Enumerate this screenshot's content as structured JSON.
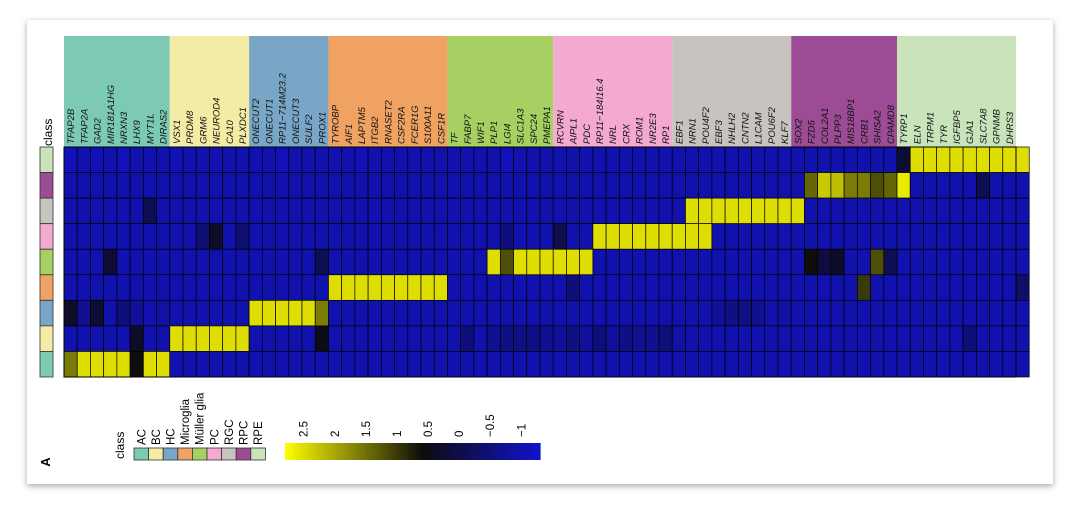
{
  "panel_label": "A",
  "chart_data": {
    "type": "heatmap",
    "class_axis_label": "class",
    "colorbar_ticks": [
      "2.5",
      "2",
      "1.5",
      "1",
      "0.5",
      "0",
      "−0.5",
      "−1"
    ],
    "colorbar_range": [
      -1.3,
      2.8
    ],
    "legend": {
      "title": "class",
      "items": [
        {
          "label": "AC",
          "color": "#7cc9b4"
        },
        {
          "label": "BC",
          "color": "#f4eca4"
        },
        {
          "label": "HC",
          "color": "#79a6c7"
        },
        {
          "label": "Microglia",
          "color": "#f0a262"
        },
        {
          "label": "Müller glia",
          "color": "#a6d061"
        },
        {
          "label": "PC",
          "color": "#f4a9d0"
        },
        {
          "label": "RGC",
          "color": "#c7c4bf"
        },
        {
          "label": "RPC",
          "color": "#9b4c95"
        },
        {
          "label": "RPE",
          "color": "#c9e3bb"
        }
      ]
    },
    "rows": [
      "RPE",
      "RPC",
      "RGC",
      "PC",
      "Müller glia",
      "Microglia",
      "HC",
      "BC",
      "AC"
    ],
    "groups": [
      {
        "class": "AC",
        "genes": [
          "TFAP2B",
          "TFAP2A",
          "GAD2",
          "MIR181A1HG",
          "NRXN3",
          "LHX9",
          "MYT1L",
          "DIRAS2"
        ]
      },
      {
        "class": "BC",
        "genes": [
          "VSX1",
          "PRDM8",
          "GRM6",
          "NEUROD4",
          "CA10",
          "PLXDC1"
        ]
      },
      {
        "class": "HC",
        "genes": [
          "ONECUT2",
          "ONECUT1",
          "RP11−714M23.2",
          "ONECUT3",
          "SULF2",
          "PROX1"
        ]
      },
      {
        "class": "Microglia",
        "genes": [
          "TYROBP",
          "AIF1",
          "LAPTM5",
          "ITGB2",
          "RNASET2",
          "CSF2RA",
          "FCER1G",
          "S100A11",
          "CSF1R"
        ]
      },
      {
        "class": "Müller glia",
        "genes": [
          "TF",
          "FABP7",
          "WIF1",
          "PLP1",
          "LGI4",
          "SLC1A3",
          "SPC24",
          "PMEPA1"
        ]
      },
      {
        "class": "PC",
        "genes": [
          "RCVRN",
          "AIPL1",
          "PDC",
          "RP11−184I16.4",
          "NRL",
          "CRX",
          "ROM1",
          "NR2E3",
          "RP1"
        ]
      },
      {
        "class": "RGC",
        "genes": [
          "EBF1",
          "NRN1",
          "POU4F2",
          "EBF3",
          "NHLH2",
          "CNTN2",
          "L1CAM",
          "POU6F2",
          "KLF7"
        ]
      },
      {
        "class": "RPC",
        "genes": [
          "SOX2",
          "FZD5",
          "COL2A1",
          "PLPP3",
          "MIS18BP1",
          "CRB1",
          "SHISA2",
          "CPAMD8"
        ]
      },
      {
        "class": "RPE",
        "genes": [
          "TYRP1",
          "ELN",
          "TRPM1",
          "TYR",
          "IGFBP5",
          "GJA1",
          "SLC7A8",
          "GPNMB",
          "DHRS3"
        ]
      }
    ],
    "values": [
      [
        -1.1,
        -1.0,
        -1.1,
        -1.0,
        -1.1,
        -1.0,
        -1.0,
        -1.0,
        -1.1,
        -1.0,
        -1.0,
        -1.0,
        -1.0,
        -1.0,
        -1.0,
        -1.0,
        -1.1,
        -1.0,
        -1.0,
        -1.0,
        -1.0,
        -1.0,
        -1.1,
        -1.0,
        -1.0,
        -1.0,
        -1.0,
        -1.0,
        -1.0,
        -1.0,
        -1.0,
        -1.0,
        -1.0,
        -1.1,
        -1.0,
        -1.0,
        -1.0,
        -1.0,
        -1.0,
        -1.0,
        -1.0,
        -1.0,
        -1.0,
        -1.0,
        -1.0,
        -1.0,
        -1.0,
        -1.0,
        -1.0,
        -1.0,
        -1.0,
        -1.0,
        -1.0,
        -1.0,
        -1.0,
        -1.0,
        -1.0,
        -1.0,
        -1.0,
        -1.0,
        -1.0,
        -1.0,
        -1.0,
        0.2,
        2.5,
        2.5,
        2.5,
        2.5,
        2.5,
        2.5,
        2.5,
        2.5,
        2.5
      ],
      [
        -1.0,
        -1.0,
        -1.0,
        -1.0,
        -1.0,
        -1.0,
        -1.0,
        -1.0,
        -1.0,
        -1.0,
        -1.0,
        -1.0,
        -1.0,
        -1.0,
        -1.0,
        -1.0,
        -1.0,
        -1.0,
        -1.0,
        -1.0,
        -1.0,
        -1.0,
        -1.0,
        -1.0,
        -1.0,
        -1.0,
        -1.0,
        -1.0,
        -1.0,
        -1.0,
        -1.0,
        -1.0,
        -1.0,
        -1.0,
        -1.0,
        -1.0,
        -1.0,
        -1.0,
        -1.0,
        -1.0,
        -1.0,
        -1.0,
        -1.0,
        -1.0,
        -1.0,
        -1.0,
        -1.0,
        -1.0,
        -1.0,
        -1.0,
        -1.0,
        -1.0,
        -1.0,
        -1.0,
        -1.0,
        -1.0,
        1.4,
        2.3,
        2.2,
        1.6,
        1.6,
        1.2,
        1.4,
        2.6,
        -1.0,
        -1.0,
        -1.0,
        -1.0,
        -1.0,
        -0.1,
        -1.0,
        -1.0,
        -1.0
      ],
      [
        -1.0,
        -1.0,
        -1.0,
        -1.0,
        -1.0,
        -1.0,
        -0.1,
        -1.0,
        -1.0,
        -1.0,
        -1.0,
        -1.0,
        -1.0,
        -1.0,
        -1.0,
        -1.0,
        -1.0,
        -1.0,
        -1.0,
        -1.0,
        -1.0,
        -1.0,
        -1.0,
        -1.0,
        -1.0,
        -1.0,
        -1.0,
        -1.0,
        -1.0,
        -1.0,
        -1.0,
        -1.0,
        -1.0,
        -1.0,
        -1.0,
        -1.0,
        -1.0,
        -1.0,
        -1.0,
        -1.0,
        -1.0,
        -1.0,
        -1.0,
        -1.0,
        -1.0,
        -1.0,
        -1.0,
        2.5,
        2.5,
        2.5,
        2.5,
        2.5,
        2.5,
        2.5,
        2.5,
        2.5,
        -1.0,
        -1.0,
        -1.0,
        -1.0,
        -1.0,
        -1.0,
        -1.0,
        -1.0,
        -1.0,
        -1.0,
        -1.0,
        -1.0,
        -1.0,
        -1.0,
        -1.0,
        -1.0,
        -1.0
      ],
      [
        -1.0,
        -1.0,
        -1.0,
        -1.0,
        -1.0,
        -1.0,
        -1.0,
        -1.0,
        -1.0,
        -1.0,
        -0.4,
        0.3,
        -1.0,
        -0.4,
        -1.0,
        -1.0,
        -1.0,
        -1.0,
        -1.0,
        -1.0,
        -1.0,
        -1.0,
        -1.0,
        -1.0,
        -1.0,
        -1.0,
        -1.0,
        -1.0,
        -1.0,
        -1.0,
        -1.0,
        -1.0,
        -1.0,
        -0.5,
        -1.0,
        -1.0,
        -1.0,
        0.0,
        -1.0,
        -1.0,
        2.5,
        2.5,
        2.5,
        2.5,
        2.5,
        2.5,
        2.5,
        2.5,
        2.5,
        -1.0,
        -1.0,
        -1.0,
        -1.0,
        -1.0,
        -1.0,
        -1.0,
        -1.0,
        -1.0,
        -1.0,
        -1.0,
        -1.0,
        -1.0,
        -1.0,
        -1.0,
        -1.0,
        -1.0,
        -1.0,
        -1.0,
        -1.0,
        -1.0,
        -1.0,
        -1.0,
        -1.0
      ],
      [
        -1.0,
        -1.0,
        -1.0,
        0.2,
        -1.0,
        -1.0,
        -1.0,
        -1.0,
        -1.0,
        -1.0,
        -1.0,
        -1.0,
        -1.0,
        -1.0,
        -1.0,
        -1.0,
        -1.0,
        -1.0,
        -1.0,
        -0.1,
        -1.0,
        -1.0,
        -1.0,
        -1.0,
        -1.0,
        -1.0,
        -1.0,
        -1.0,
        -1.0,
        -1.0,
        -1.0,
        -1.0,
        2.5,
        1.2,
        2.5,
        2.5,
        2.5,
        2.5,
        2.5,
        2.5,
        -1.0,
        -1.0,
        -1.0,
        -1.0,
        -1.0,
        -1.0,
        -1.0,
        -1.0,
        -1.0,
        -1.0,
        -1.0,
        -1.0,
        -1.0,
        -1.0,
        -1.0,
        -1.0,
        0.6,
        0.1,
        0.3,
        -1.0,
        -1.0,
        1.2,
        -0.1,
        -1.0,
        -1.0,
        -1.0,
        -1.0,
        -1.0,
        -1.0,
        -1.0,
        -1.0,
        -1.0,
        -1.0
      ],
      [
        -1.0,
        -1.0,
        -1.0,
        -1.0,
        -1.0,
        -1.0,
        -1.0,
        -1.0,
        -1.0,
        -1.0,
        -1.0,
        -1.0,
        -1.0,
        -1.0,
        -1.0,
        -1.0,
        -1.0,
        -1.0,
        -1.0,
        -1.0,
        2.5,
        2.5,
        2.5,
        2.5,
        2.5,
        2.5,
        2.5,
        2.5,
        2.5,
        -1.0,
        -1.0,
        -1.0,
        -1.0,
        -1.0,
        -1.0,
        -1.0,
        -1.0,
        -1.0,
        -0.5,
        -1.0,
        -1.0,
        -1.0,
        -1.0,
        -1.0,
        -1.0,
        -1.0,
        -1.0,
        -1.0,
        -1.0,
        -1.0,
        -1.0,
        -1.0,
        -1.0,
        -1.0,
        -1.0,
        -1.0,
        -1.0,
        -1.0,
        -1.0,
        -1.0,
        1.0,
        -1.0,
        -1.0,
        -1.0,
        -1.0,
        -1.0,
        -1.0,
        -1.0,
        -1.0,
        -1.0,
        -1.0,
        -1.0,
        -0.3
      ],
      [
        0.3,
        -0.7,
        0.2,
        -1.0,
        -0.5,
        -0.8,
        -1.0,
        -0.9,
        -1.0,
        -1.0,
        -1.0,
        -1.0,
        -1.0,
        -1.0,
        2.5,
        2.5,
        2.5,
        2.5,
        2.5,
        1.6,
        -1.0,
        -1.0,
        -1.0,
        -1.0,
        -1.0,
        -1.0,
        -1.0,
        -1.0,
        -1.0,
        -1.0,
        -1.0,
        -1.0,
        -1.0,
        -1.0,
        -1.0,
        -1.0,
        -1.0,
        -1.0,
        -1.0,
        -1.0,
        -1.0,
        -1.0,
        -1.0,
        -1.0,
        -1.0,
        -1.0,
        -1.0,
        -1.0,
        -1.0,
        -0.8,
        -0.6,
        -0.6,
        -0.7,
        -1.0,
        -0.9,
        -1.0,
        -1.0,
        -1.0,
        -1.0,
        -1.0,
        -1.0,
        -1.0,
        -1.0,
        -1.0,
        -1.0,
        -1.0,
        -1.0,
        -1.0,
        -1.0,
        -1.0,
        -1.0,
        -1.0,
        -1.0
      ],
      [
        -1.0,
        -1.0,
        -1.0,
        -1.0,
        -1.0,
        0.3,
        -1.0,
        -1.0,
        2.5,
        2.5,
        2.5,
        2.5,
        2.5,
        2.5,
        -1.0,
        -1.0,
        -1.0,
        -1.0,
        -1.0,
        0.5,
        -1.0,
        -1.0,
        -1.0,
        -1.0,
        -1.0,
        -1.0,
        -1.0,
        -1.0,
        -1.0,
        -1.0,
        -0.5,
        -1.0,
        -0.7,
        -0.6,
        -0.6,
        -0.6,
        -0.7,
        -0.8,
        -0.6,
        -0.8,
        -0.5,
        -0.8,
        -0.6,
        -0.7,
        -0.7,
        -0.5,
        -0.9,
        -1.0,
        -1.0,
        -1.0,
        -1.0,
        -1.0,
        -1.0,
        -1.0,
        -1.0,
        -1.0,
        -1.0,
        -1.0,
        -1.0,
        -1.0,
        -1.0,
        -1.0,
        -1.0,
        -1.0,
        -1.0,
        -1.0,
        -1.0,
        -1.0,
        -0.5,
        -1.0,
        -1.0,
        -1.0,
        -1.0
      ],
      [
        1.6,
        2.5,
        2.5,
        2.5,
        2.5,
        0.6,
        2.5,
        2.5,
        -1.0,
        -1.0,
        -1.0,
        -1.0,
        -1.0,
        -1.0,
        -1.0,
        -1.0,
        -1.0,
        -1.0,
        -1.0,
        -1.0,
        -1.0,
        -1.0,
        -1.0,
        -1.0,
        -1.0,
        -1.0,
        -1.0,
        -1.0,
        -1.0,
        -1.0,
        -1.0,
        -1.0,
        -1.0,
        -1.0,
        -1.0,
        -1.0,
        -1.0,
        -1.0,
        -1.0,
        -1.0,
        -1.0,
        -1.0,
        -1.0,
        -1.0,
        -1.0,
        -1.0,
        -1.0,
        -1.0,
        -1.0,
        -1.0,
        -1.0,
        -1.0,
        -1.0,
        -1.0,
        -1.0,
        -1.0,
        -1.0,
        -1.0,
        -1.0,
        -1.0,
        -1.0,
        -1.0,
        -1.0,
        -1.0,
        -1.0,
        -1.0,
        -1.0,
        -1.0,
        -1.0,
        -1.0,
        -1.0,
        -1.0,
        -1.0
      ]
    ]
  }
}
